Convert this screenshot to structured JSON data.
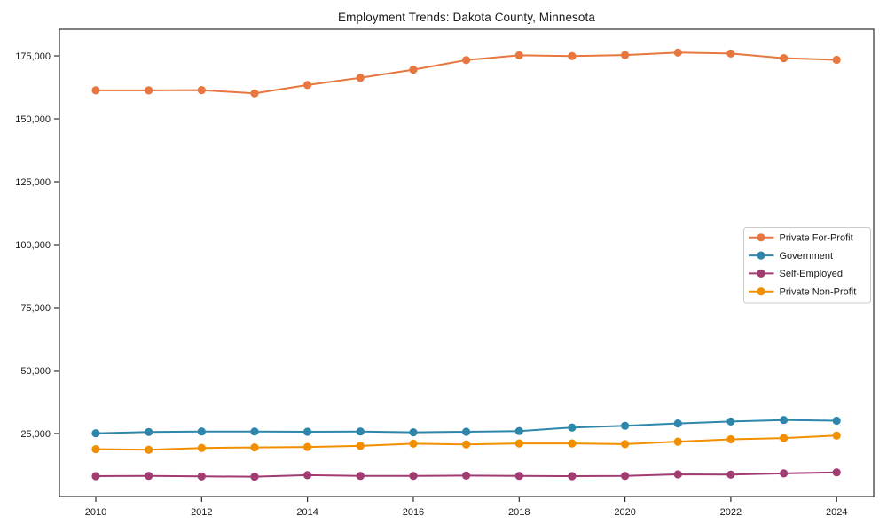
{
  "figure": {
    "background": "#ffffff",
    "spine_color": "#1a1a1a",
    "tick_label_color": "#1a1a1a"
  },
  "chart_data": {
    "type": "line",
    "title": "Employment Trends: Dakota County, Minnesota",
    "xlabel": "",
    "ylabel": "",
    "x": [
      2010,
      2011,
      2012,
      2013,
      2014,
      2015,
      2016,
      2017,
      2018,
      2019,
      2020,
      2021,
      2022,
      2023,
      2024
    ],
    "x_tick_labels": [
      "2010",
      "2012",
      "2014",
      "2016",
      "2018",
      "2020",
      "2022",
      "2024"
    ],
    "y_ticks": [
      {
        "value": 25000,
        "label": "25,000"
      },
      {
        "value": 50000,
        "label": "50,000"
      },
      {
        "value": 75000,
        "label": "75,000"
      },
      {
        "value": 100000,
        "label": "100,000"
      },
      {
        "value": 125000,
        "label": "125,000"
      },
      {
        "value": 150000,
        "label": "150,000"
      },
      {
        "value": 175000,
        "label": "175,000"
      }
    ],
    "ylim": [
      0,
      185500
    ],
    "grid": false,
    "legend_position": "center-right",
    "series": [
      {
        "name": "Private For-Profit",
        "color": "#E8773F",
        "values": [
          161300,
          161300,
          161400,
          160100,
          163400,
          166300,
          169500,
          173300,
          175200,
          174900,
          175300,
          176300,
          175900,
          174100,
          173400
        ]
      },
      {
        "name": "Government",
        "color": "#2E86AB",
        "values": [
          25100,
          25600,
          25800,
          25800,
          25700,
          25800,
          25500,
          25700,
          26000,
          27400,
          28100,
          29000,
          29800,
          30400,
          30100
        ]
      },
      {
        "name": "Self-Employed",
        "color": "#A23B72",
        "values": [
          8100,
          8200,
          8000,
          7900,
          8500,
          8200,
          8200,
          8300,
          8200,
          8100,
          8200,
          8800,
          8700,
          9200,
          9600
        ]
      },
      {
        "name": "Private Non-Profit",
        "color": "#F18F01",
        "values": [
          18800,
          18600,
          19300,
          19500,
          19700,
          20100,
          21000,
          20700,
          21100,
          21100,
          20800,
          21800,
          22700,
          23200,
          24200
        ]
      }
    ]
  }
}
